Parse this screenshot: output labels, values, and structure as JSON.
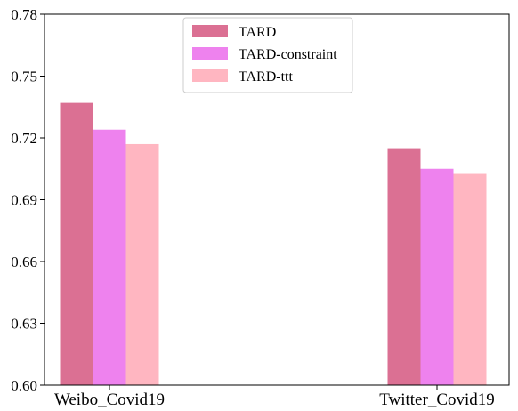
{
  "chart_data": {
    "type": "bar",
    "title": "",
    "xlabel": "",
    "ylabel": "",
    "categories": [
      "Weibo_Covid19",
      "Twitter_Covid19"
    ],
    "series": [
      {
        "name": "TARD",
        "values": [
          0.737,
          0.715
        ],
        "color": "#db7093"
      },
      {
        "name": "TARD-constraint",
        "values": [
          0.724,
          0.705
        ],
        "color": "#ee82ee"
      },
      {
        "name": "TARD-ttt",
        "values": [
          0.717,
          0.7025
        ],
        "color": "#ffb6c1"
      }
    ],
    "ylim": [
      0.6,
      0.78
    ],
    "yticks": [
      "0.60",
      "0.63",
      "0.66",
      "0.69",
      "0.72",
      "0.75",
      "0.78"
    ],
    "grid": false,
    "legend": "top-center"
  }
}
